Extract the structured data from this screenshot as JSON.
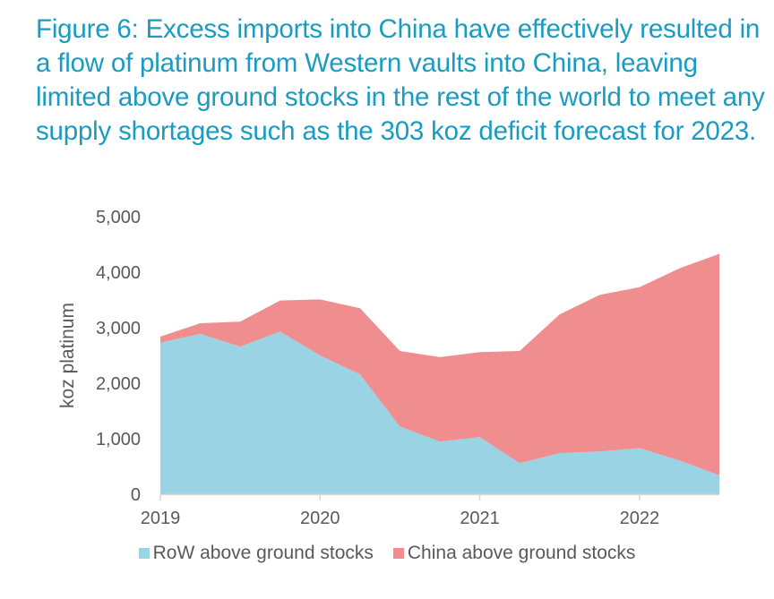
{
  "figure": {
    "title": "Figure 6: Excess imports into China have effectively resulted in a flow of platinum from Western vaults into China, leaving limited above ground stocks in the rest of the world to meet any supply shortages such as the 303 koz deficit forecast for 2023."
  },
  "colors": {
    "title": "#1a9bbf",
    "row": "#9ad3e3",
    "china": "#f08d8e",
    "axis": "#d9d9d9",
    "text": "#595959"
  },
  "chart_data": {
    "type": "area",
    "stacked": true,
    "title": "Figure 6: Excess imports into China have effectively resulted in a flow of platinum from Western vaults into China, leaving limited above ground stocks in the rest of the world to meet any supply shortages such as the 303 koz deficit forecast for 2023.",
    "xlabel": "",
    "ylabel": "koz platinum",
    "x": [
      2019.0,
      2019.25,
      2019.5,
      2019.75,
      2020.0,
      2020.25,
      2020.5,
      2020.75,
      2021.0,
      2021.25,
      2021.5,
      2021.75,
      2022.0,
      2022.25,
      2022.5
    ],
    "xlim": [
      2019.0,
      2022.5
    ],
    "ylim": [
      0,
      5000
    ],
    "xticks": [
      2019,
      2020,
      2021,
      2022
    ],
    "xtick_labels": [
      "2019",
      "2020",
      "2021",
      "2022"
    ],
    "yticks": [
      0,
      1000,
      2000,
      3000,
      4000,
      5000
    ],
    "ytick_labels": [
      "0",
      "1,000",
      "2,000",
      "3,000",
      "4,000",
      "5,000"
    ],
    "grid": false,
    "legend_position": "bottom",
    "series": [
      {
        "name": "RoW above ground stocks",
        "color": "#9ad3e3",
        "values": [
          2730,
          2890,
          2660,
          2930,
          2500,
          2160,
          1220,
          950,
          1030,
          560,
          740,
          770,
          830,
          610,
          340
        ]
      },
      {
        "name": "China above ground stocks",
        "color": "#f08d8e",
        "values": [
          110,
          190,
          450,
          560,
          1010,
          1190,
          1360,
          1520,
          1530,
          2020,
          2500,
          2820,
          2900,
          3460,
          3990
        ]
      }
    ]
  },
  "legend": {
    "items": [
      {
        "label": "RoW above ground stocks",
        "color": "#9ad3e3"
      },
      {
        "label": "China above ground stocks",
        "color": "#f08d8e"
      }
    ]
  }
}
